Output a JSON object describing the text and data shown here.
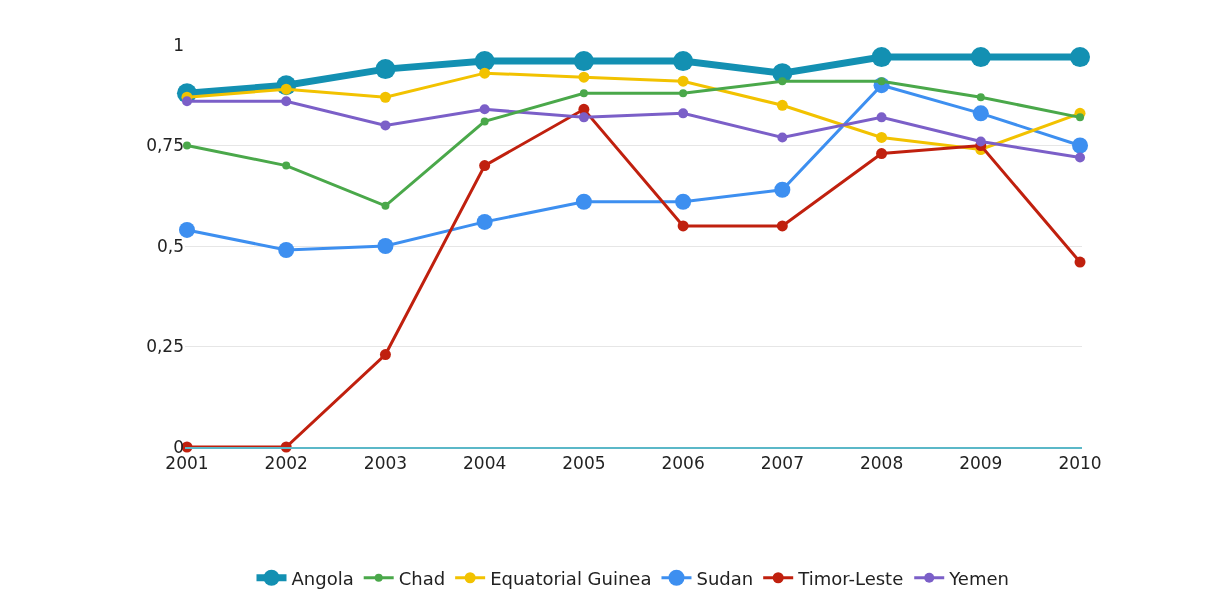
{
  "chart_data": {
    "type": "line",
    "categories": [
      "2001",
      "2002",
      "2003",
      "2004",
      "2005",
      "2006",
      "2007",
      "2008",
      "2009",
      "2010"
    ],
    "series": [
      {
        "name": "Angola",
        "color": "#1390b2",
        "values": [
          0.88,
          0.9,
          0.94,
          0.96,
          0.96,
          0.96,
          0.93,
          0.97,
          0.97,
          0.97
        ]
      },
      {
        "name": "Chad",
        "color": "#4aa84a",
        "values": [
          0.75,
          0.7,
          0.6,
          0.81,
          0.88,
          0.88,
          0.91,
          0.91,
          0.87,
          0.82
        ]
      },
      {
        "name": "Equatorial Guinea",
        "color": "#f2c200",
        "values": [
          0.87,
          0.89,
          0.87,
          0.93,
          0.92,
          0.91,
          0.85,
          0.77,
          0.74,
          0.83
        ]
      },
      {
        "name": "Sudan",
        "color": "#3d8ff0",
        "values": [
          0.54,
          0.49,
          0.5,
          0.56,
          0.61,
          0.61,
          0.64,
          0.9,
          0.83,
          0.75
        ]
      },
      {
        "name": "Timor-Leste",
        "color": "#c0200e",
        "values": [
          0,
          0,
          0.23,
          0.7,
          0.84,
          0.55,
          0.55,
          0.73,
          0.75,
          0.46
        ]
      },
      {
        "name": "Yemen",
        "color": "#7b5fc8",
        "values": [
          0.86,
          0.86,
          0.8,
          0.84,
          0.82,
          0.83,
          0.77,
          0.82,
          0.76,
          0.72
        ]
      }
    ],
    "ylim": [
      0,
      1
    ],
    "yticks": [
      0,
      {
        "value": 0.25,
        "label": "0,25"
      },
      {
        "value": 0.5,
        "label": "0,5"
      },
      {
        "value": 0.75,
        "label": "0,75"
      },
      1
    ],
    "grid": "y",
    "legend": "bottom",
    "marker": "circle",
    "line_style": "solid"
  }
}
